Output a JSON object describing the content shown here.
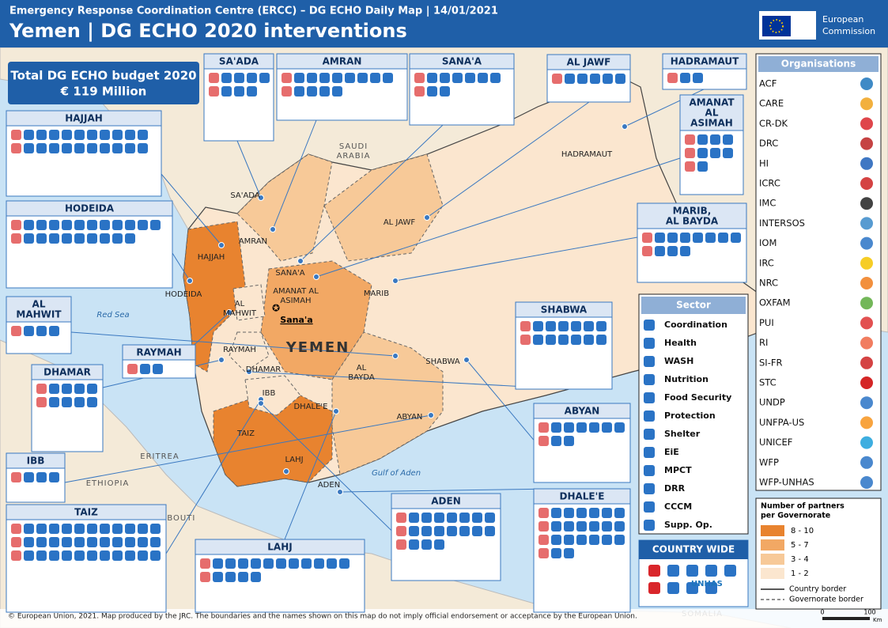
{
  "header": {
    "subtitle": "Emergency Response Coordination Centre (ERCC) – DG ECHO Daily Map | 14/01/2021",
    "title": "Yemen | DG ECHO 2020 interventions",
    "logo": [
      "European",
      "Commission"
    ]
  },
  "budget": {
    "label": "Total DG ECHO budget 2020",
    "amount": "€ 119 Million"
  },
  "governorates": [
    {
      "name": [
        "SA'ADA"
      ]
    },
    {
      "name": [
        "AMRAN"
      ]
    },
    {
      "name": [
        "SANA'A"
      ]
    },
    {
      "name": [
        "AL JAWF"
      ]
    },
    {
      "name": [
        "HADRAMAUT"
      ]
    },
    {
      "name": [
        "AMANAT",
        "AL",
        "ASIMAH"
      ]
    },
    {
      "name": [
        "HAJJAH"
      ]
    },
    {
      "name": [
        "HODEIDA"
      ]
    },
    {
      "name": [
        "MARIB,",
        "AL BAYDA"
      ]
    },
    {
      "name": [
        "AL",
        "MAHWIT"
      ]
    },
    {
      "name": [
        "RAYMAH"
      ]
    },
    {
      "name": [
        "DHAMAR"
      ]
    },
    {
      "name": [
        "SHABWA"
      ]
    },
    {
      "name": [
        "ABYAN"
      ]
    },
    {
      "name": [
        "IBB"
      ]
    },
    {
      "name": [
        "TAIZ"
      ]
    },
    {
      "name": [
        "ADEN"
      ]
    },
    {
      "name": [
        "DHALE'E"
      ]
    },
    {
      "name": [
        "LAHJ"
      ]
    }
  ],
  "map_labels": [
    {
      "text": [
        "SA'ADA"
      ]
    },
    {
      "text": [
        "AMRAN"
      ]
    },
    {
      "text": [
        "SANA'A"
      ]
    },
    {
      "text": [
        "AL JAWF"
      ]
    },
    {
      "text": [
        "HADRAMAUT"
      ]
    },
    {
      "text": [
        "AMANAT AL",
        "ASIMAH"
      ]
    },
    {
      "text": [
        "HAJJAH"
      ]
    },
    {
      "text": [
        "HODEIDA"
      ]
    },
    {
      "text": [
        "MARIB"
      ]
    },
    {
      "text": [
        "AL",
        "BAYDA"
      ]
    },
    {
      "text": [
        "AL",
        "MAHWIT"
      ]
    },
    {
      "text": [
        "RAYMAH"
      ]
    },
    {
      "text": [
        "DHAMAR"
      ]
    },
    {
      "text": [
        "SHABWA"
      ]
    },
    {
      "text": [
        "ABYAN"
      ]
    },
    {
      "text": [
        "IBB"
      ]
    },
    {
      "text": [
        "TAIZ"
      ]
    },
    {
      "text": [
        "ADEN"
      ]
    },
    {
      "text": [
        "DHALE'E"
      ]
    },
    {
      "text": [
        "LAHJ"
      ]
    }
  ],
  "places": {
    "capital": "Sana'a",
    "country": "YEMEN",
    "saudi": [
      "SAUDI",
      "ARABIA"
    ],
    "red_sea": "Red Sea",
    "gulf": "Gulf of Aden",
    "eritrea": "ERITREA",
    "ethiopia": "ETHIOPIA",
    "djibouti": "DJIBOUTI",
    "somalia": "SOMALIA"
  },
  "organisations": {
    "title": "Organisations",
    "items": [
      "ACF",
      "CARE",
      "CR-DK",
      "DRC",
      "HI",
      "ICRC",
      "IMC",
      "INTERSOS",
      "IOM",
      "IRC",
      "NRC",
      "OXFAM",
      "PUI",
      "RI",
      "SI-FR",
      "STC",
      "UNDP",
      "UNFPA-US",
      "UNICEF",
      "WFP",
      "WFP-UNHAS"
    ]
  },
  "sector": {
    "title": "Sector",
    "items": [
      "Coordination",
      "Health",
      "WASH",
      "Nutrition",
      "Food Security",
      "Protection",
      "Shelter",
      "EiE",
      "MPCT",
      "DRR",
      "CCCM",
      "Supp. Op."
    ]
  },
  "legend": {
    "title": [
      "Number  of partners",
      "per Governorate"
    ],
    "classes": [
      {
        "label": "8 - 10",
        "color": "#e8832f"
      },
      {
        "label": "5 - 7",
        "color": "#f2a864"
      },
      {
        "label": "3 - 4",
        "color": "#f7c998"
      },
      {
        "label": "1 - 2",
        "color": "#fbe6cf"
      }
    ],
    "country_border": "Country border",
    "governorate_border": "Governorate border"
  },
  "country_wide": {
    "title": "COUNTRY WIDE",
    "unhas": "UNHAS"
  },
  "scale": {
    "ticks": [
      "0",
      "100"
    ],
    "unit": "Km"
  },
  "footer": "© European Union, 2021. Map produced by the JRC. The boundaries and the names shown on this map do not imply official endorsement or acceptance by the European Union."
}
